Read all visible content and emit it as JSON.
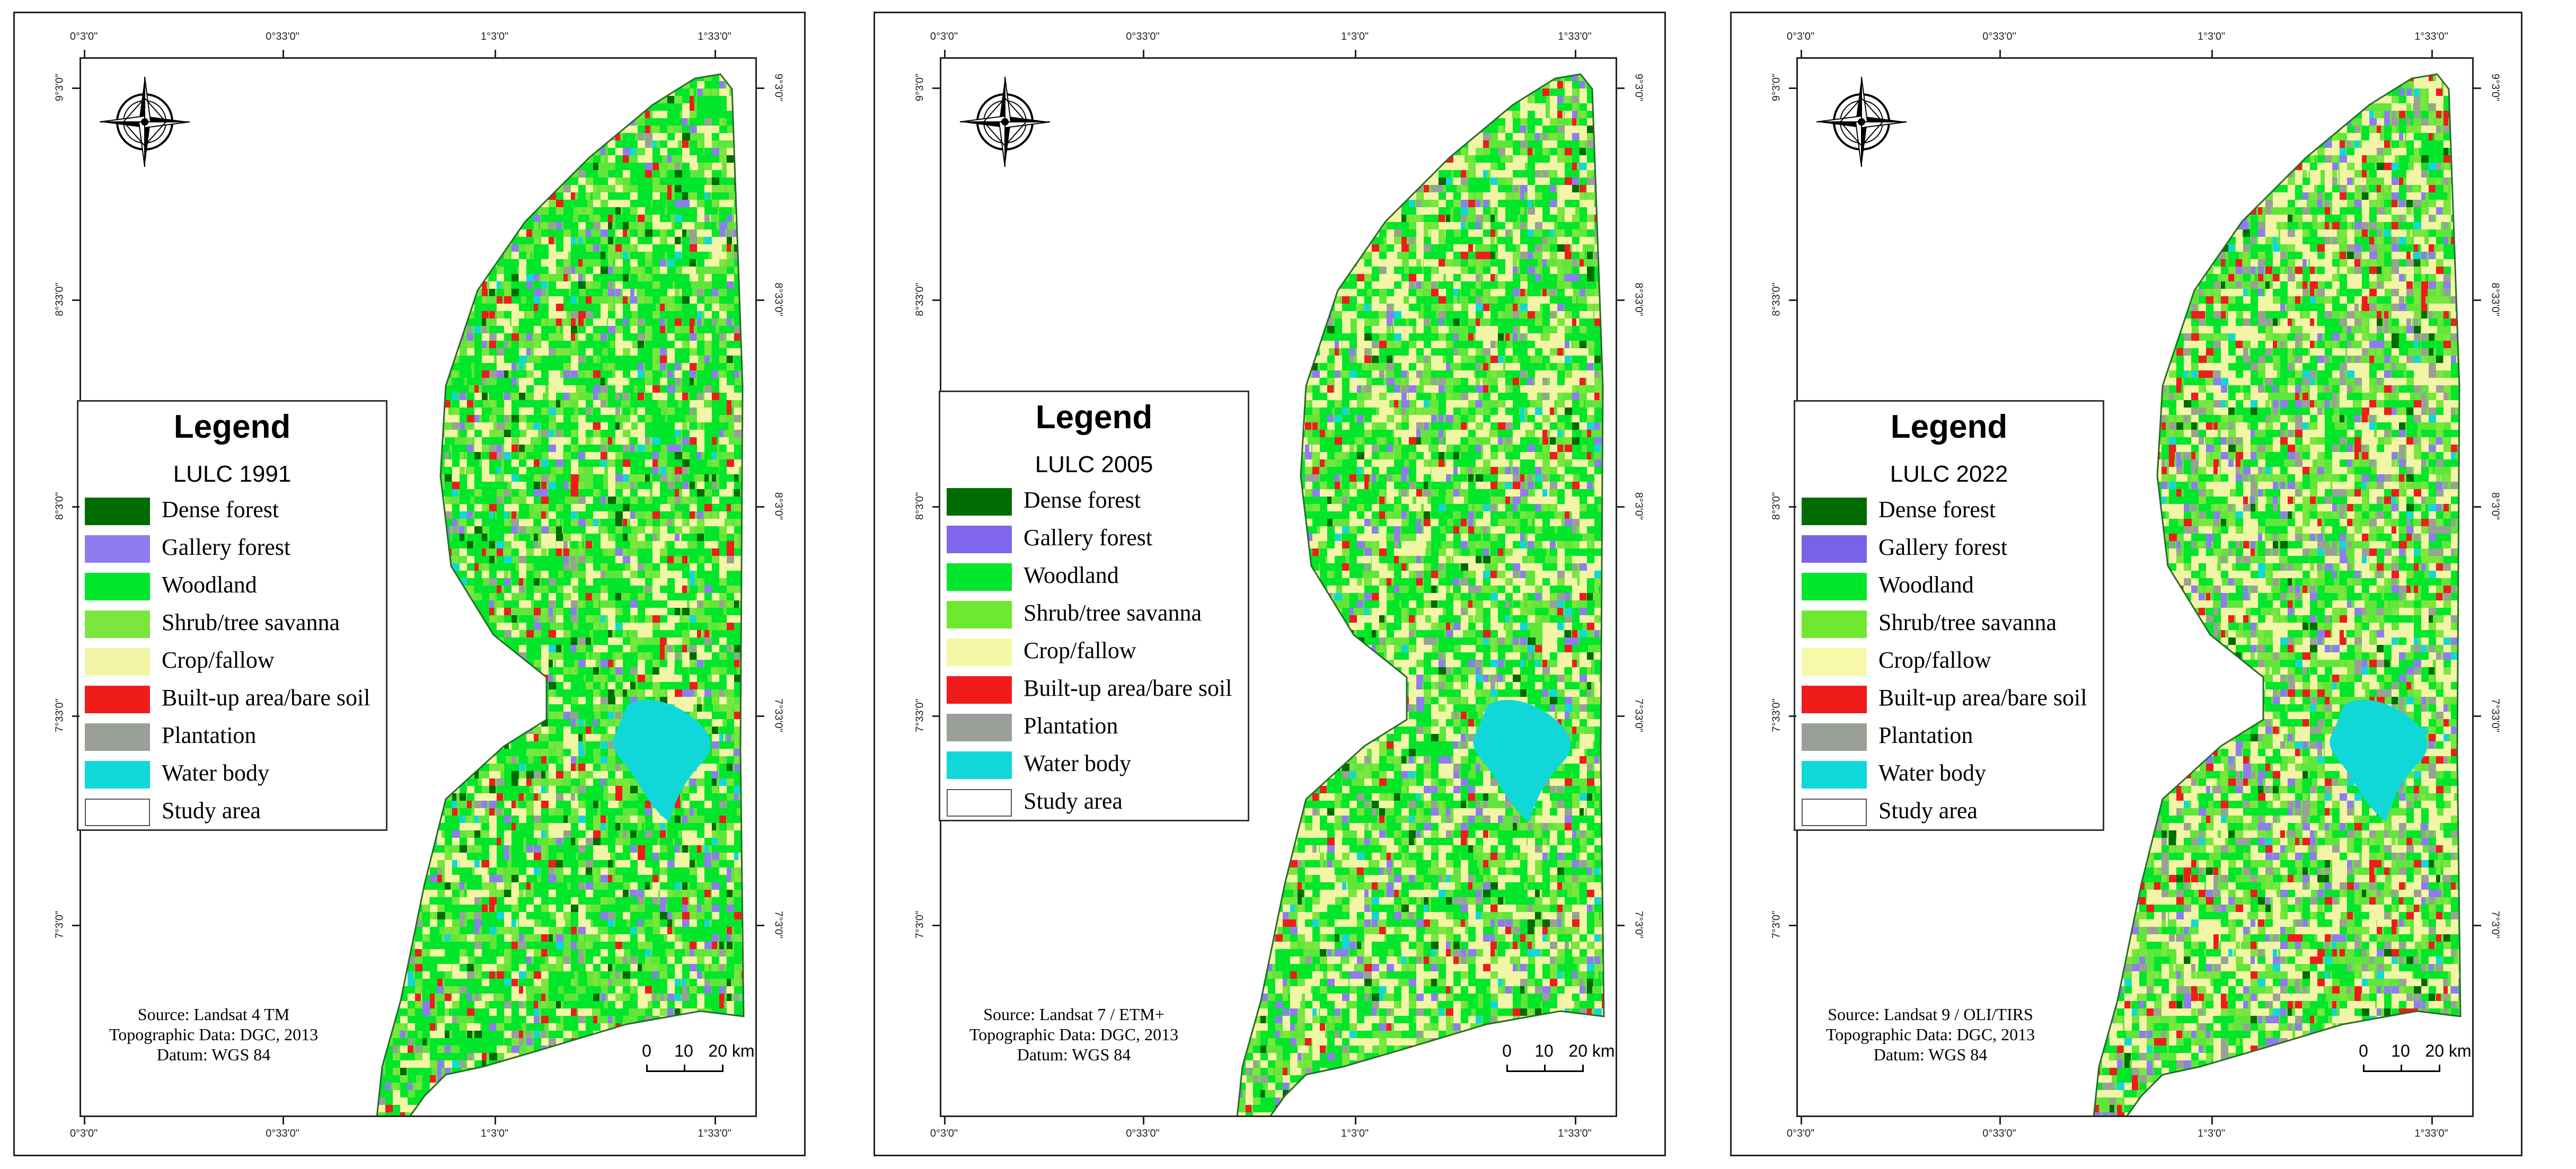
{
  "coords": {
    "top_ticks": [
      "0°3'0\"",
      "0°33'0\"",
      "1°3'0\"",
      "1°33'0\""
    ],
    "bottom_ticks": [
      "0°3'0\"",
      "0°33'0\"",
      "1°3'0\"",
      "1°33'0\""
    ],
    "side_ticks": [
      "9°3'0\"",
      "8°33'0\"",
      "8°3'0\"",
      "7°33'0\"",
      "7°3'0\""
    ]
  },
  "legend": {
    "title": "Legend",
    "classes": [
      {
        "label": "Dense forest",
        "color": "#006b00"
      },
      {
        "label": "Gallery forest",
        "color": "#8f7df0"
      },
      {
        "label": "Woodland",
        "color": "#00e62a"
      },
      {
        "label": "Shrub/tree savanna",
        "color": "#7be63e"
      },
      {
        "label": "Crop/fallow",
        "color": "#f3f5a6"
      },
      {
        "label": "Built-up area/bare soil",
        "color": "#f01c1c"
      },
      {
        "label": "Plantation",
        "color": "#9aa098"
      },
      {
        "label": "Water body",
        "color": "#11d8d8"
      },
      {
        "label": "Study area",
        "color": "#ffffff"
      }
    ]
  },
  "scale_bar": {
    "labels": [
      "0",
      "10",
      "20 km"
    ]
  },
  "panels": [
    {
      "lulc": "LULC 1991",
      "source": [
        "Source: Landsat 4 TM",
        "Topographic Data: DGC, 2013",
        "Datum: WGS 84"
      ]
    },
    {
      "lulc": "LULC 2005",
      "source": [
        "Source: Landsat 7 / ETM+",
        "Topographic Data: DGC, 2013",
        "Datum: WGS 84"
      ]
    },
    {
      "lulc": "LULC 2022",
      "source": [
        "Source: Landsat 9 / OLI/TIRS",
        "Topographic Data: DGC, 2013",
        "Datum: WGS 84"
      ]
    }
  ]
}
